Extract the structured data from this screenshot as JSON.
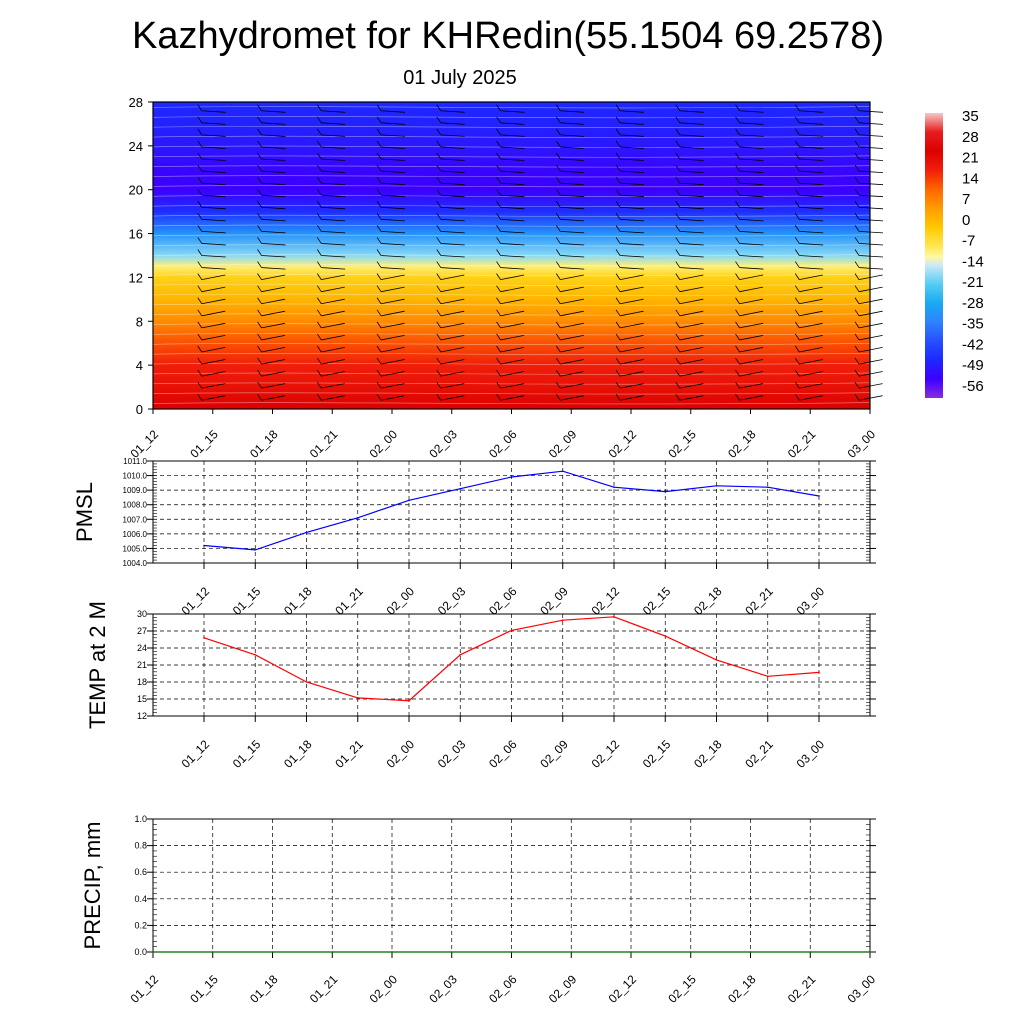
{
  "title": "Kazhydromet for KHRedin(55.1504 69.2578)",
  "subtitle": "01 July 2025",
  "colors": {
    "pmsl_line": "#0000ff",
    "temp_line": "#ff0000",
    "precip_line": "#006400",
    "grid": "#000000",
    "frame": "#000000"
  },
  "chart_data": [
    {
      "id": "cross-section",
      "type": "heatmap",
      "x_ticks": [
        "01_12",
        "01_15",
        "01_18",
        "01_21",
        "02_00",
        "02_03",
        "02_06",
        "02_09",
        "02_12",
        "02_15",
        "02_18",
        "02_21",
        "03_00"
      ],
      "y_ticks": [
        "0",
        "4",
        "8",
        "12",
        "16",
        "20",
        "24",
        "28"
      ],
      "ylim": [
        0,
        28
      ],
      "colorbar_labels": [
        "35",
        "28",
        "21",
        "14",
        "7",
        "0",
        "-7",
        "-14",
        "-21",
        "-28",
        "-35",
        "-42",
        "-49",
        "-56"
      ],
      "colorbar_range": [
        -63,
        42
      ],
      "profile_levels": [
        0,
        2,
        4,
        6,
        8,
        10,
        12,
        13,
        14,
        16,
        18,
        20,
        22,
        24,
        26,
        28
      ],
      "profile_values": [
        28,
        24,
        21,
        16,
        9,
        3,
        -2,
        -9,
        -18,
        -32,
        -48,
        -56,
        -55,
        -52,
        -50,
        -49
      ],
      "wind_barbs": true
    },
    {
      "id": "pmsl",
      "type": "line",
      "ylabel": "PMSL",
      "y_ticks": [
        "1004.0",
        "1005.0",
        "1006.0",
        "1007.0",
        "1008.0",
        "1009.0",
        "1010.0",
        "1011.0"
      ],
      "ylim": [
        1004.0,
        1011.0
      ],
      "x_ticks": [
        "01_12",
        "01_15",
        "01_18",
        "01_21",
        "02_00",
        "02_03",
        "02_06",
        "02_09",
        "02_12",
        "02_15",
        "02_18",
        "02_21",
        "03_00"
      ],
      "x": [
        "01_12",
        "01_15",
        "01_18",
        "01_21",
        "02_00",
        "02_03",
        "02_06",
        "02_09",
        "02_12",
        "02_15",
        "02_18",
        "02_21",
        "03_00"
      ],
      "values": [
        1005.2,
        1004.9,
        1006.1,
        1007.1,
        1008.3,
        1009.1,
        1009.9,
        1010.3,
        1009.2,
        1008.9,
        1009.3,
        1009.2,
        1008.6
      ],
      "grid": true
    },
    {
      "id": "temp",
      "type": "line",
      "ylabel": "TEMP at 2 M",
      "y_ticks": [
        "12",
        "15",
        "18",
        "21",
        "24",
        "27",
        "30"
      ],
      "ylim": [
        12,
        30
      ],
      "x_ticks": [
        "01_12",
        "01_15",
        "01_18",
        "01_21",
        "02_00",
        "02_03",
        "02_06",
        "02_09",
        "02_12",
        "02_15",
        "02_18",
        "02_21",
        "03_00"
      ],
      "x": [
        "01_12",
        "01_15",
        "01_18",
        "01_21",
        "02_00",
        "02_03",
        "02_06",
        "02_09",
        "02_12",
        "02_15",
        "02_18",
        "02_21",
        "03_00"
      ],
      "values": [
        25.8,
        22.8,
        18.0,
        15.2,
        14.7,
        22.8,
        27.1,
        28.9,
        29.5,
        26.1,
        21.9,
        19.0,
        19.7
      ],
      "grid": true
    },
    {
      "id": "precip",
      "type": "line",
      "ylabel": "PRECIP, mm",
      "y_ticks": [
        "0.0",
        "0.2",
        "0.4",
        "0.6",
        "0.8",
        "1.0"
      ],
      "ylim": [
        0.0,
        1.0
      ],
      "x_ticks": [
        "01_12",
        "01_15",
        "01_18",
        "01_21",
        "02_00",
        "02_03",
        "02_06",
        "02_09",
        "02_12",
        "02_15",
        "02_18",
        "02_21",
        "03_00"
      ],
      "x": [
        "01_12",
        "01_15",
        "01_18",
        "01_21",
        "02_00",
        "02_03",
        "02_06",
        "02_09",
        "02_12",
        "02_15",
        "02_18",
        "02_21",
        "03_00"
      ],
      "values": [
        0,
        0,
        0,
        0,
        0,
        0,
        0,
        0,
        0,
        0,
        0,
        0,
        0
      ],
      "grid": true
    }
  ]
}
